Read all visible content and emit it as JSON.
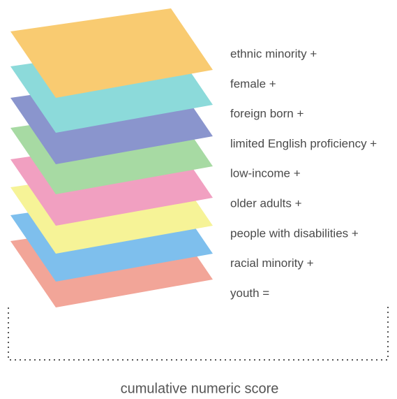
{
  "layers": [
    {
      "label": "ethnic minority +"
    },
    {
      "label": "female +"
    },
    {
      "label": "foreign born +"
    },
    {
      "label": "limited English proficiency +"
    },
    {
      "label": "low-income +"
    },
    {
      "label": "older adults +"
    },
    {
      "label": "people with disabilities +"
    },
    {
      "label": "racial minority +"
    },
    {
      "label": "youth ="
    }
  ],
  "caption": "cumulative numeric score"
}
